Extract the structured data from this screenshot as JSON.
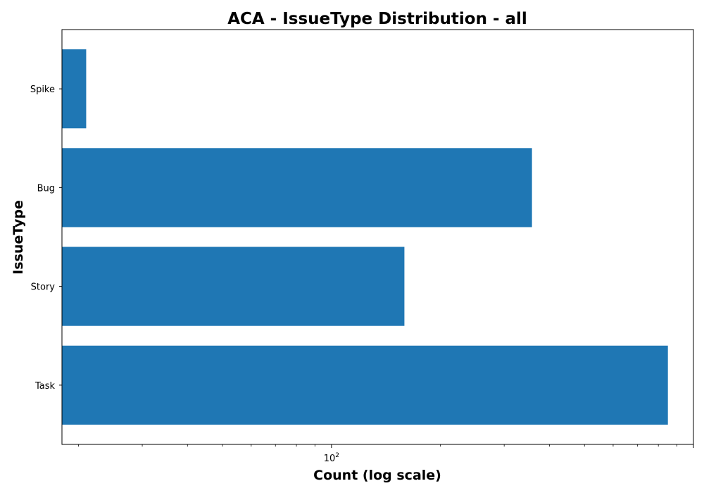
{
  "chart_data": {
    "type": "bar",
    "orientation": "horizontal",
    "title": "ACA - IssueType Distribution - all",
    "xlabel": "Count (log scale)",
    "ylabel": "IssueType",
    "x_scale": "log",
    "xlim": [
      18,
      1000
    ],
    "categories": [
      "Task",
      "Story",
      "Bug",
      "Spike"
    ],
    "values": [
      850,
      159,
      358,
      21
    ],
    "bar_color": "#1f77b4",
    "grid": false,
    "legend": "none",
    "x_major_tick": {
      "value": 100,
      "base": "10",
      "exponent": "2"
    }
  }
}
